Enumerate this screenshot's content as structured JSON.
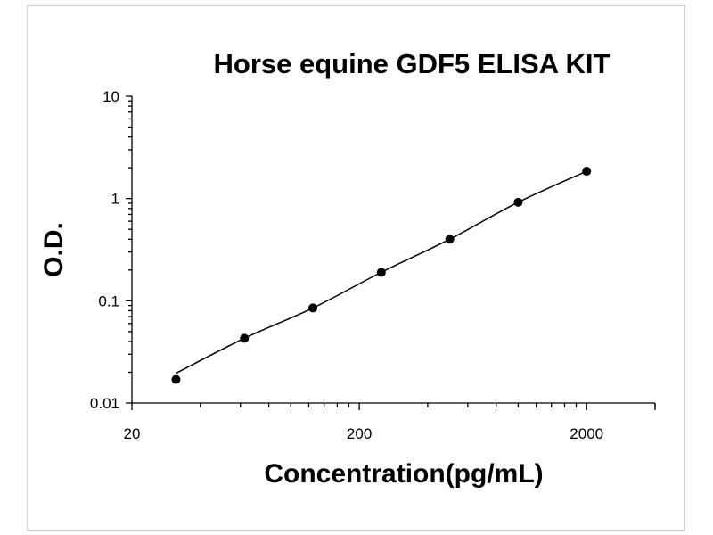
{
  "chart_data": {
    "type": "scatter",
    "title": "Horse equine GDF5 ELISA KIT",
    "xlabel": "Concentration(pg/mL)",
    "ylabel": "O.D.",
    "x_scale": "log",
    "y_scale": "log",
    "xlim": [
      20,
      4000
    ],
    "ylim": [
      0.01,
      10
    ],
    "x_tick_labels": [
      "20",
      "200",
      "2000"
    ],
    "y_tick_labels": [
      "10",
      "1",
      "0.1",
      "0.01"
    ],
    "grid": false,
    "series": [
      {
        "x": [
          31.25,
          62.5,
          125,
          250,
          500,
          1000,
          2000
        ],
        "y": [
          0.017,
          0.043,
          0.085,
          0.19,
          0.4,
          0.92,
          1.85
        ],
        "fit_curve": true
      }
    ],
    "colors": {
      "points": "#000000",
      "curve": "#000000",
      "axes": "#000000"
    }
  }
}
